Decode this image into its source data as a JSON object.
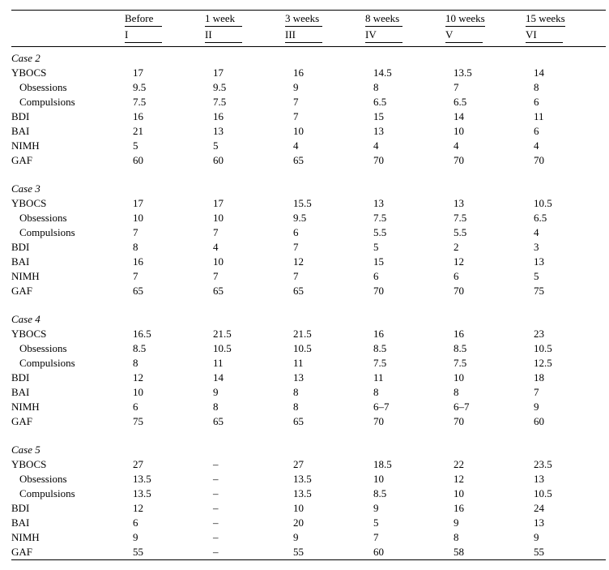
{
  "headers_top": [
    "Before",
    "1 week",
    "3 weeks",
    "8 weeks",
    "10 weeks",
    "15 weeks"
  ],
  "headers_bot": [
    "I",
    "II",
    "III",
    "IV",
    "V",
    "VI"
  ],
  "measures_main": [
    "YBOCS",
    "BDI",
    "BAI",
    "NIMH",
    "GAF"
  ],
  "measures_sub": [
    "Obsessions",
    "Compulsions"
  ],
  "cases": [
    {
      "title": "Case 2",
      "rows": [
        {
          "label": "YBOCS",
          "vals": [
            "17",
            "17",
            "16",
            "14.5",
            "13.5",
            "14"
          ]
        },
        {
          "label": "Obsessions",
          "indent": true,
          "vals": [
            "9.5",
            "9.5",
            "9",
            "8",
            "7",
            "8"
          ]
        },
        {
          "label": "Compulsions",
          "indent": true,
          "vals": [
            "7.5",
            "7.5",
            "7",
            "6.5",
            "6.5",
            "6"
          ]
        },
        {
          "label": "BDI",
          "vals": [
            "16",
            "16",
            "7",
            "15",
            "14",
            "11"
          ]
        },
        {
          "label": "BAI",
          "vals": [
            "21",
            "13",
            "10",
            "13",
            "10",
            "6"
          ]
        },
        {
          "label": "NIMH",
          "vals": [
            "5",
            "5",
            "4",
            "4",
            "4",
            "4"
          ]
        },
        {
          "label": "GAF",
          "vals": [
            "60",
            "60",
            "65",
            "70",
            "70",
            "70"
          ]
        }
      ]
    },
    {
      "title": "Case 3",
      "rows": [
        {
          "label": "YBOCS",
          "vals": [
            "17",
            "17",
            "15.5",
            "13",
            "13",
            "10.5"
          ]
        },
        {
          "label": "Obsessions",
          "indent": true,
          "vals": [
            "10",
            "10",
            "9.5",
            "7.5",
            "7.5",
            "6.5"
          ]
        },
        {
          "label": "Compulsions",
          "indent": true,
          "vals": [
            "7",
            "7",
            "6",
            "5.5",
            "5.5",
            "4"
          ]
        },
        {
          "label": "BDI",
          "vals": [
            "8",
            "4",
            "7",
            "5",
            "2",
            "3"
          ]
        },
        {
          "label": "BAI",
          "vals": [
            "16",
            "10",
            "12",
            "15",
            "12",
            "13"
          ]
        },
        {
          "label": "NIMH",
          "vals": [
            "7",
            "7",
            "7",
            "6",
            "6",
            "5"
          ]
        },
        {
          "label": "GAF",
          "vals": [
            "65",
            "65",
            "65",
            "70",
            "70",
            "75"
          ]
        }
      ]
    },
    {
      "title": "Case 4",
      "rows": [
        {
          "label": "YBOCS",
          "vals": [
            "16.5",
            "21.5",
            "21.5",
            "16",
            "16",
            "23"
          ]
        },
        {
          "label": "Obsessions",
          "indent": true,
          "vals": [
            "8.5",
            "10.5",
            "10.5",
            "8.5",
            "8.5",
            "10.5"
          ]
        },
        {
          "label": "Compulsions",
          "indent": true,
          "vals": [
            "8",
            "11",
            "11",
            "7.5",
            "7.5",
            "12.5"
          ]
        },
        {
          "label": "BDI",
          "vals": [
            "12",
            "14",
            "13",
            "11",
            "10",
            "18"
          ]
        },
        {
          "label": "BAI",
          "vals": [
            "10",
            "9",
            "8",
            "8",
            "8",
            "7"
          ]
        },
        {
          "label": "NIMH",
          "vals": [
            "6",
            "8",
            "8",
            "6–7",
            "6–7",
            "9"
          ]
        },
        {
          "label": "GAF",
          "vals": [
            "75",
            "65",
            "65",
            "70",
            "70",
            "60"
          ]
        }
      ]
    },
    {
      "title": "Case 5",
      "rows": [
        {
          "label": "YBOCS",
          "vals": [
            "27",
            "–",
            "27",
            "18.5",
            "22",
            "23.5"
          ]
        },
        {
          "label": "Obsessions",
          "indent": true,
          "vals": [
            "13.5",
            "–",
            "13.5",
            "10",
            "12",
            "13"
          ]
        },
        {
          "label": "Compulsions",
          "indent": true,
          "vals": [
            "13.5",
            "–",
            "13.5",
            "8.5",
            "10",
            "10.5"
          ]
        },
        {
          "label": "BDI",
          "vals": [
            "12",
            "–",
            "10",
            "9",
            "16",
            "24"
          ]
        },
        {
          "label": "BAI",
          "vals": [
            "6",
            "–",
            "20",
            "5",
            "9",
            "13"
          ]
        },
        {
          "label": "NIMH",
          "vals": [
            "9",
            "–",
            "9",
            "7",
            "8",
            "9"
          ]
        },
        {
          "label": "GAF",
          "vals": [
            "55",
            "–",
            "55",
            "60",
            "58",
            "55"
          ]
        }
      ]
    }
  ]
}
